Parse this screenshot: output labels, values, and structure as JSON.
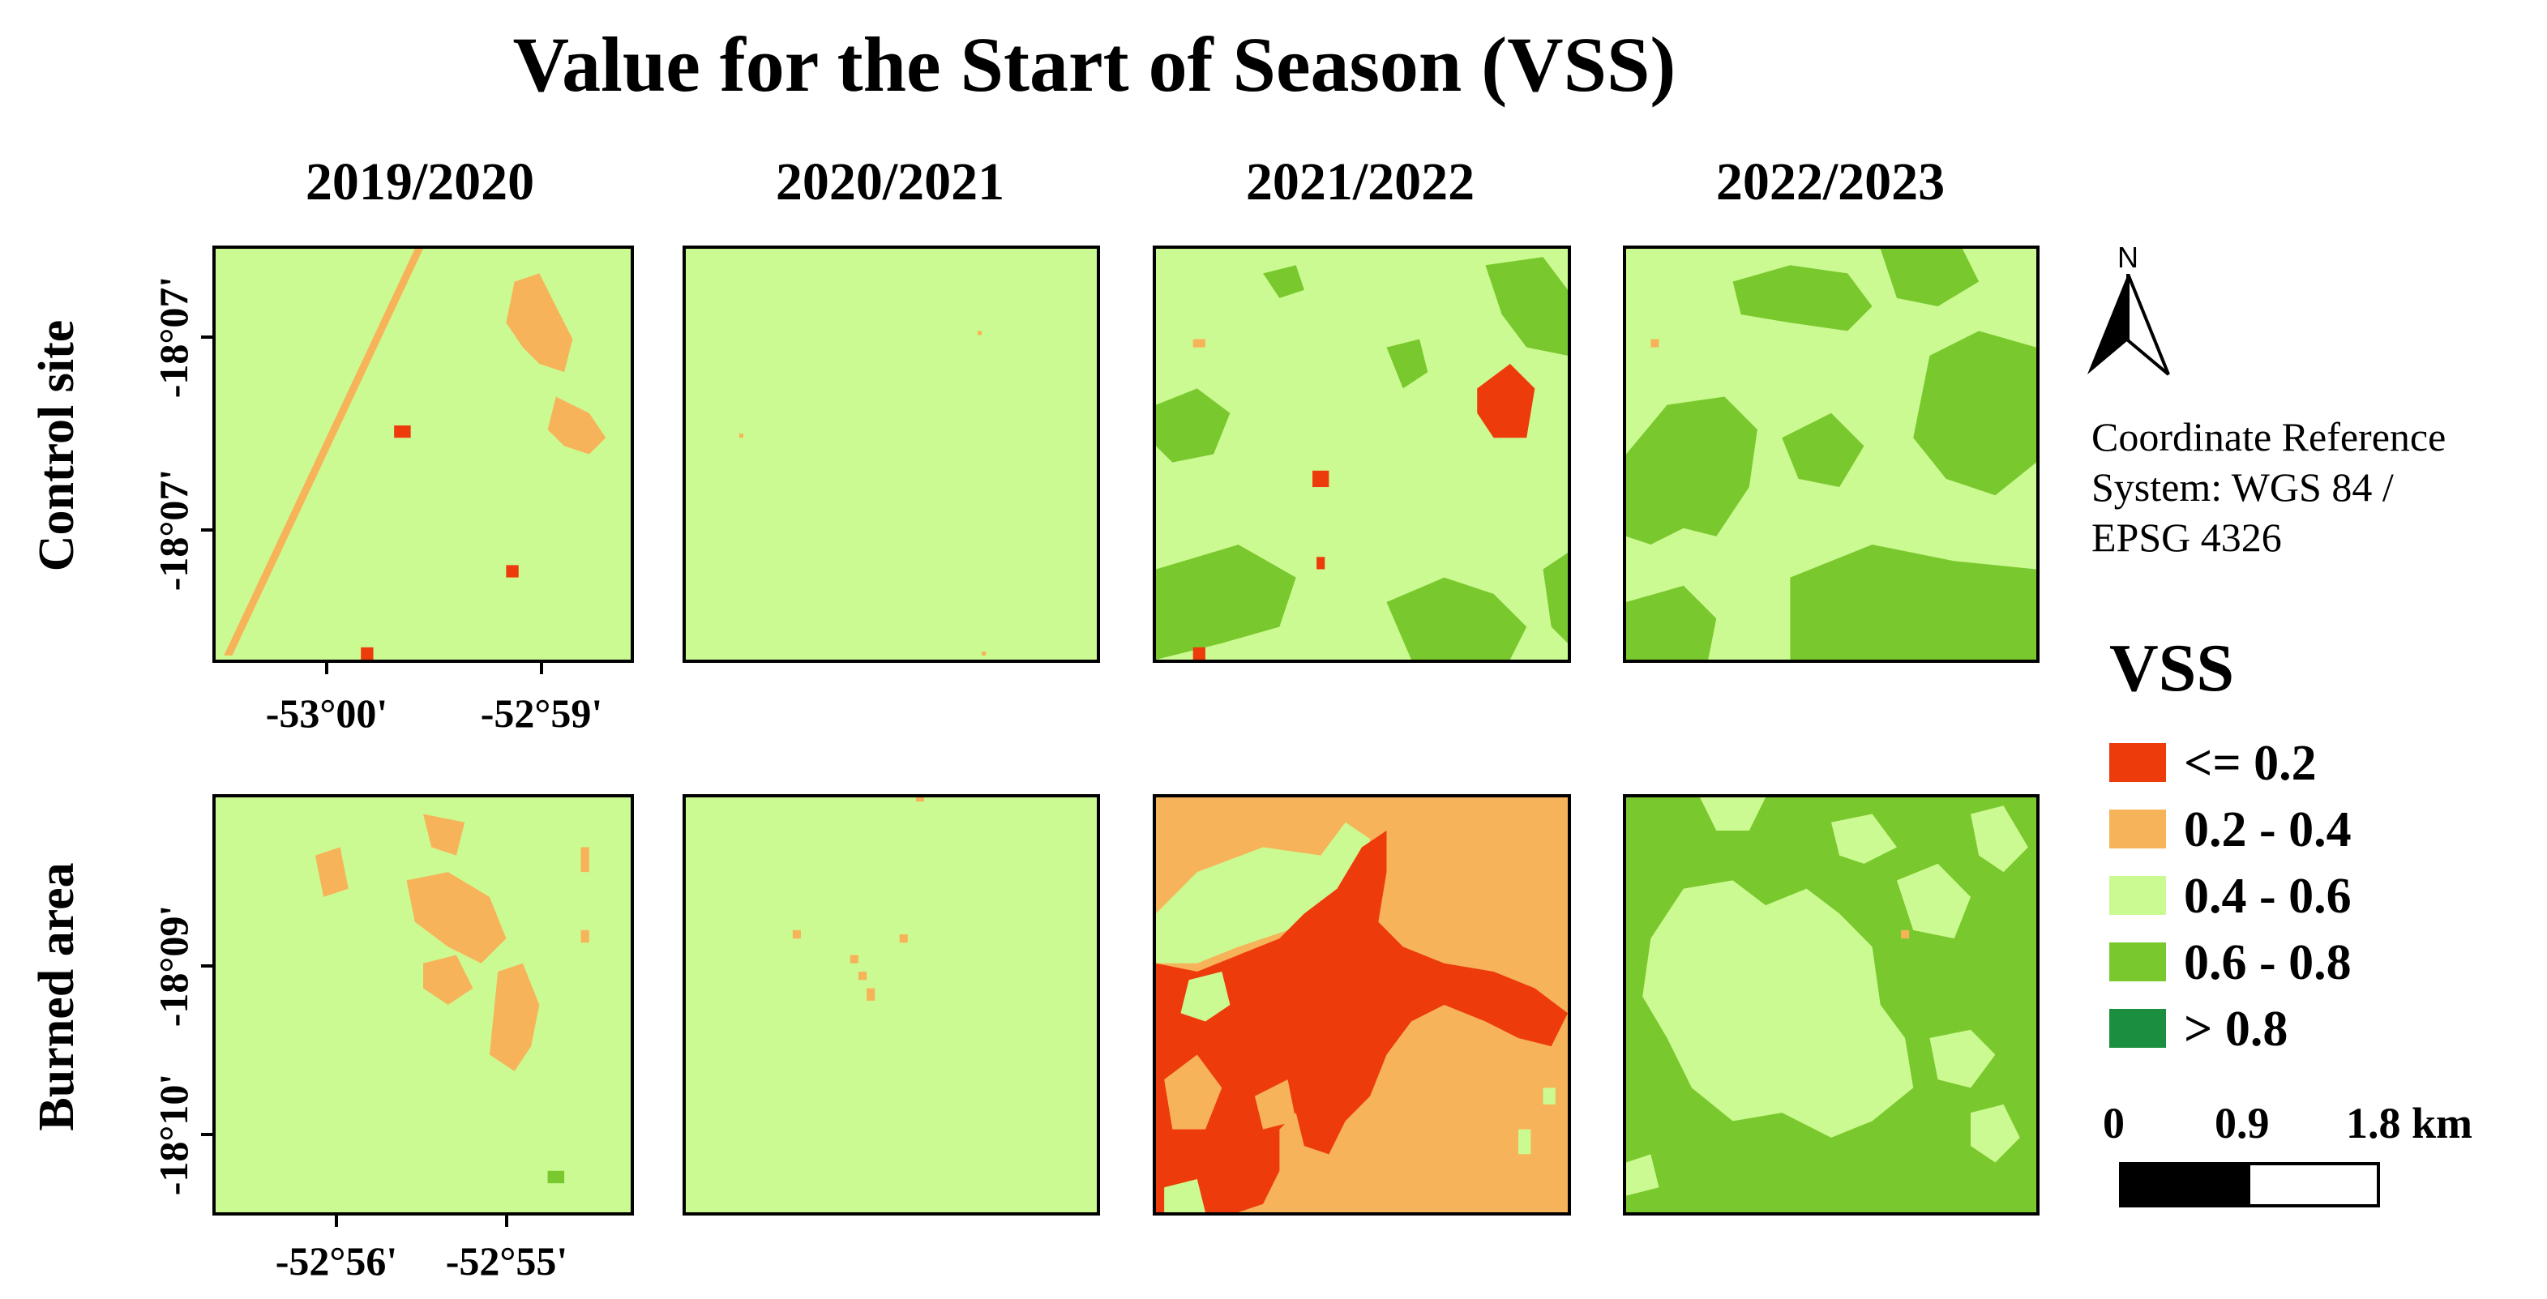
{
  "title": "Value for the Start of Season (VSS)",
  "columns": [
    "2019/2020",
    "2020/2021",
    "2021/2022",
    "2022/2023"
  ],
  "rows": [
    "Control site",
    "Burned area"
  ],
  "control_lat_ticks": [
    "-18°07'",
    "-18°07'"
  ],
  "control_lon_ticks": [
    "-53°00'",
    "-52°59'"
  ],
  "burned_lat_ticks": [
    "-18°09'",
    "-18°10'"
  ],
  "burned_lon_ticks": [
    "-52°56'",
    "-52°55'"
  ],
  "north_label": "N",
  "crs_text": [
    "Coordinate Reference",
    "System: WGS 84 /",
    "EPSG 4326"
  ],
  "legend": {
    "title": "VSS",
    "items": [
      {
        "label": "<= 0.2",
        "color": "#ee3b0b"
      },
      {
        "label": "0.2 - 0.4",
        "color": "#f7b35a"
      },
      {
        "label": "0.4 - 0.6",
        "color": "#ccfa92"
      },
      {
        "label": "0.6 - 0.8",
        "color": "#79c92e"
      },
      {
        "label": "> 0.8",
        "color": "#1b8f3f"
      }
    ]
  },
  "scalebar": {
    "labels": [
      "0",
      "0.9",
      "1.8 km"
    ]
  }
}
